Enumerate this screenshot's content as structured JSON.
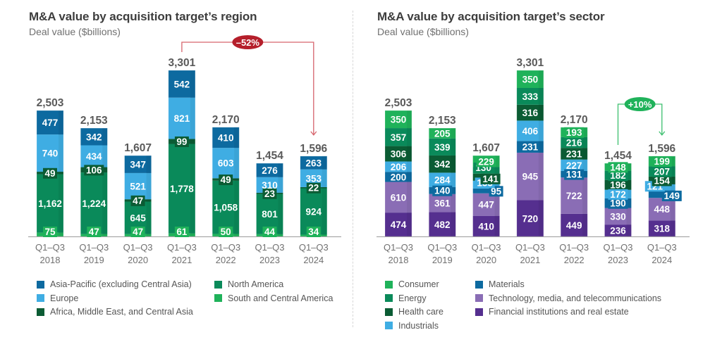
{
  "chart_data": [
    {
      "type": "bar",
      "stacked": true,
      "title": "M&A value by acquisition target’s region",
      "subtitle": "Deal value ($billions)",
      "xlabel": "",
      "ylabel": "",
      "grid": false,
      "legend_position": "bottom",
      "categories": [
        [
          "Q1–Q3",
          "2018"
        ],
        [
          "Q1–Q3",
          "2019"
        ],
        [
          "Q1–Q3",
          "2020"
        ],
        [
          "Q1–Q3",
          "2021"
        ],
        [
          "Q1–Q3",
          "2022"
        ],
        [
          "Q1–Q3",
          "2023"
        ],
        [
          "Q1–Q3",
          "2024"
        ]
      ],
      "totals": [
        "2,503",
        "2,153",
        "1,607",
        "3,301",
        "2,170",
        "1,454",
        "1,596"
      ],
      "total_values": [
        2503,
        2153,
        1607,
        3301,
        2170,
        1454,
        1596
      ],
      "series": [
        {
          "name": "South and Central America",
          "color": "#1fb25a",
          "values": [
            75,
            47,
            47,
            61,
            50,
            44,
            34
          ],
          "labels": [
            "75",
            "47",
            "47",
            "61",
            "50",
            "44",
            "34"
          ]
        },
        {
          "name": "North America",
          "color": "#0a8a5a",
          "values": [
            1162,
            1224,
            645,
            1778,
            1058,
            801,
            924
          ],
          "labels": [
            "1,162",
            "1,224",
            "645",
            "1,778",
            "1,058",
            "801",
            "924"
          ]
        },
        {
          "name": "Africa, Middle East, and Central Asia",
          "color": "#0b5c34",
          "values": [
            49,
            106,
            47,
            99,
            49,
            23,
            22
          ],
          "labels": [
            "49",
            "106",
            "47",
            "99",
            "49",
            "23",
            "22"
          ]
        },
        {
          "name": "Europe",
          "color": "#3fade3",
          "values": [
            740,
            434,
            521,
            821,
            603,
            310,
            353
          ],
          "labels": [
            "740",
            "434",
            "521",
            "821",
            "603",
            "310",
            "353"
          ]
        },
        {
          "name": "Asia-Pacific (excluding Central Asia)",
          "color": "#0d6aa0",
          "values": [
            477,
            342,
            347,
            542,
            410,
            276,
            263
          ],
          "labels": [
            "477",
            "342",
            "347",
            "542",
            "410",
            "276",
            "263"
          ]
        }
      ],
      "legend": [
        {
          "name": "Asia-Pacific (excluding Central Asia)",
          "color": "#0d6aa0"
        },
        {
          "name": "Europe",
          "color": "#3fade3"
        },
        {
          "name": "Africa, Middle East, and Central Asia",
          "color": "#0b5c34"
        },
        {
          "name": "North America",
          "color": "#0a8a5a"
        },
        {
          "name": "South and Central America",
          "color": "#1fb25a"
        }
      ],
      "annotation": {
        "text": "–52%",
        "from_category": 3,
        "to_category": 6,
        "color": "#b51f2b",
        "line_color": "#d6646c"
      },
      "ylim": [
        0,
        3400
      ]
    },
    {
      "type": "bar",
      "stacked": true,
      "title": "M&A value by acquisition target’s sector",
      "subtitle": "Deal value ($billions)",
      "xlabel": "",
      "ylabel": "",
      "grid": false,
      "legend_position": "bottom",
      "categories": [
        [
          "Q1–Q3",
          "2018"
        ],
        [
          "Q1–Q3",
          "2019"
        ],
        [
          "Q1–Q3",
          "2020"
        ],
        [
          "Q1–Q3",
          "2021"
        ],
        [
          "Q1–Q3",
          "2022"
        ],
        [
          "Q1–Q3",
          "2023"
        ],
        [
          "Q1–Q3",
          "2024"
        ]
      ],
      "totals": [
        "2,503",
        "2,153",
        "1,607",
        "3,301",
        "2,170",
        "1,454",
        "1,596"
      ],
      "total_values": [
        2503,
        2153,
        1607,
        3301,
        2170,
        1454,
        1596
      ],
      "series": [
        {
          "name": "Financial institutions and real estate",
          "color": "#552f8f",
          "values": [
            474,
            482,
            410,
            720,
            449,
            236,
            318
          ],
          "labels": [
            "474",
            "482",
            "410",
            "720",
            "449",
            "236",
            "318"
          ]
        },
        {
          "name": "Technology, media, and telecommunications",
          "color": "#8a6db5",
          "values": [
            610,
            361,
            447,
            945,
            722,
            330,
            448
          ],
          "labels": [
            "610",
            "361",
            "447",
            "945",
            "722",
            "330",
            "448"
          ]
        },
        {
          "name": "Materials",
          "color": "#0d6aa0",
          "values": [
            200,
            140,
            95,
            231,
            131,
            190,
            149
          ],
          "labels": [
            "200",
            "140",
            "95",
            "231",
            "131",
            "190",
            "149"
          ]
        },
        {
          "name": "Industrials",
          "color": "#3fade3",
          "values": [
            206,
            284,
            155,
            406,
            227,
            172,
            121
          ],
          "labels": [
            "206",
            "284",
            "155",
            "406",
            "227",
            "172",
            "121"
          ]
        },
        {
          "name": "Health care",
          "color": "#0b5c34",
          "values": [
            306,
            342,
            141,
            316,
            231,
            196,
            154
          ],
          "labels": [
            "306",
            "342",
            "141",
            "316",
            "231",
            "196",
            "154"
          ]
        },
        {
          "name": "Energy",
          "color": "#0a8a5a",
          "values": [
            357,
            339,
            130,
            333,
            216,
            182,
            207
          ],
          "labels": [
            "357",
            "339",
            "130",
            "333",
            "216",
            "182",
            "207"
          ]
        },
        {
          "name": "Consumer",
          "color": "#1fb25a",
          "values": [
            350,
            205,
            229,
            350,
            193,
            148,
            199
          ],
          "labels": [
            "350",
            "205",
            "229",
            "350",
            "193",
            "148",
            "199"
          ]
        }
      ],
      "legend": [
        {
          "name": "Consumer",
          "color": "#1fb25a"
        },
        {
          "name": "Energy",
          "color": "#0a8a5a"
        },
        {
          "name": "Health care",
          "color": "#0b5c34"
        },
        {
          "name": "Industrials",
          "color": "#3fade3"
        },
        {
          "name": "Materials",
          "color": "#0d6aa0"
        },
        {
          "name": "Technology, media, and telecommunications",
          "color": "#8a6db5"
        },
        {
          "name": "Financial institutions and real estate",
          "color": "#552f8f"
        }
      ],
      "annotation": {
        "text": "+10%",
        "from_category": 5,
        "to_category": 6,
        "color": "#1fb25a",
        "line_color": "#3cbf6e"
      },
      "ylim": [
        0,
        3400
      ]
    }
  ]
}
